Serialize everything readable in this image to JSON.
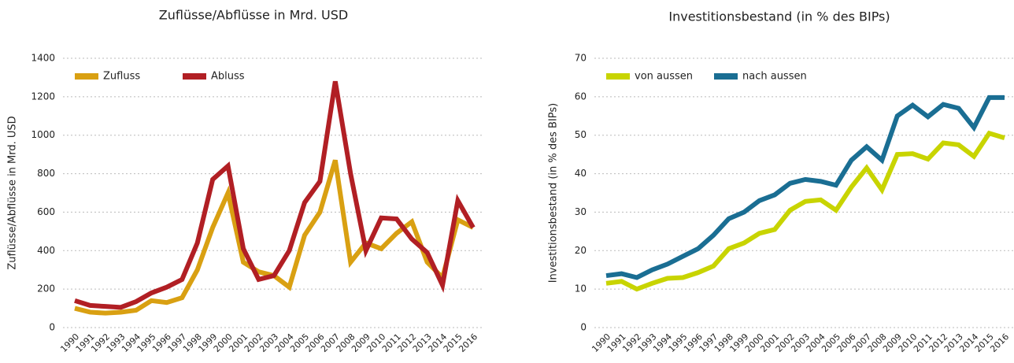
{
  "chart_data": [
    {
      "type": "line",
      "title": "Zuflüsse/Abflüsse in Mrd. USD",
      "y_label": "Zuflüsse/Abflüsse in Mrd. USD",
      "categories": [
        "1990",
        "1991",
        "1992",
        "1993",
        "1994",
        "1995",
        "1996",
        "1997",
        "1998",
        "1999",
        "2000",
        "2001",
        "2002",
        "2003",
        "2004",
        "2005",
        "2006",
        "2007",
        "2008",
        "2009",
        "2010",
        "2011",
        "2012",
        "2013",
        "2014",
        "2015",
        "2016"
      ],
      "series": [
        {
          "name": "Zufluss",
          "color": "#d9a012",
          "values": [
            100,
            80,
            75,
            80,
            90,
            140,
            130,
            155,
            300,
            520,
            700,
            340,
            290,
            270,
            210,
            480,
            600,
            870,
            340,
            440,
            410,
            490,
            550,
            340,
            260,
            560,
            520
          ]
        },
        {
          "name": "Abluss",
          "color": "#b11f24",
          "values": [
            140,
            115,
            110,
            105,
            135,
            180,
            210,
            250,
            440,
            770,
            840,
            410,
            250,
            270,
            400,
            650,
            760,
            1280,
            800,
            400,
            570,
            565,
            460,
            390,
            220,
            660,
            520
          ]
        }
      ],
      "ylim": [
        0,
        1400
      ],
      "yticks": [
        0,
        200,
        400,
        600,
        800,
        1000,
        1200,
        1400
      ],
      "grid": true,
      "legend": "top-left"
    },
    {
      "type": "line",
      "title": "Investitionsbestand (in % des BIPs)",
      "y_label": "Investitionsbestand (in % des BIPs)",
      "categories": [
        "1990",
        "1991",
        "1992",
        "1993",
        "1994",
        "1995",
        "1996",
        "1997",
        "1998",
        "1999",
        "2000",
        "2001",
        "2002",
        "2003",
        "2004",
        "2005",
        "2006",
        "2007",
        "2008",
        "2009",
        "2010",
        "2011",
        "2012",
        "2013",
        "2014",
        "2015",
        "2016"
      ],
      "series": [
        {
          "name": "von aussen",
          "color": "#c8d400",
          "values": [
            11.5,
            12,
            10,
            11.5,
            12.8,
            13,
            14.3,
            16,
            20.5,
            22,
            24.5,
            25.5,
            30.5,
            32.8,
            33.2,
            30.5,
            36.5,
            41.5,
            35.8,
            45,
            45.2,
            43.8,
            48,
            47.5,
            44.5,
            50.5,
            49.3
          ]
        },
        {
          "name": "nach aussen",
          "color": "#1a6e93",
          "values": [
            13.5,
            14,
            13,
            15,
            16.5,
            18.5,
            20.5,
            24,
            28.3,
            30,
            33,
            34.5,
            37.5,
            38.5,
            38,
            37,
            43.5,
            47,
            43.5,
            55,
            57.8,
            54.8,
            58,
            57,
            52,
            59.8,
            59.8
          ]
        }
      ],
      "ylim": [
        0,
        70
      ],
      "yticks": [
        0,
        10,
        20,
        30,
        40,
        50,
        60,
        70
      ],
      "grid": true,
      "legend": "top-left"
    }
  ]
}
